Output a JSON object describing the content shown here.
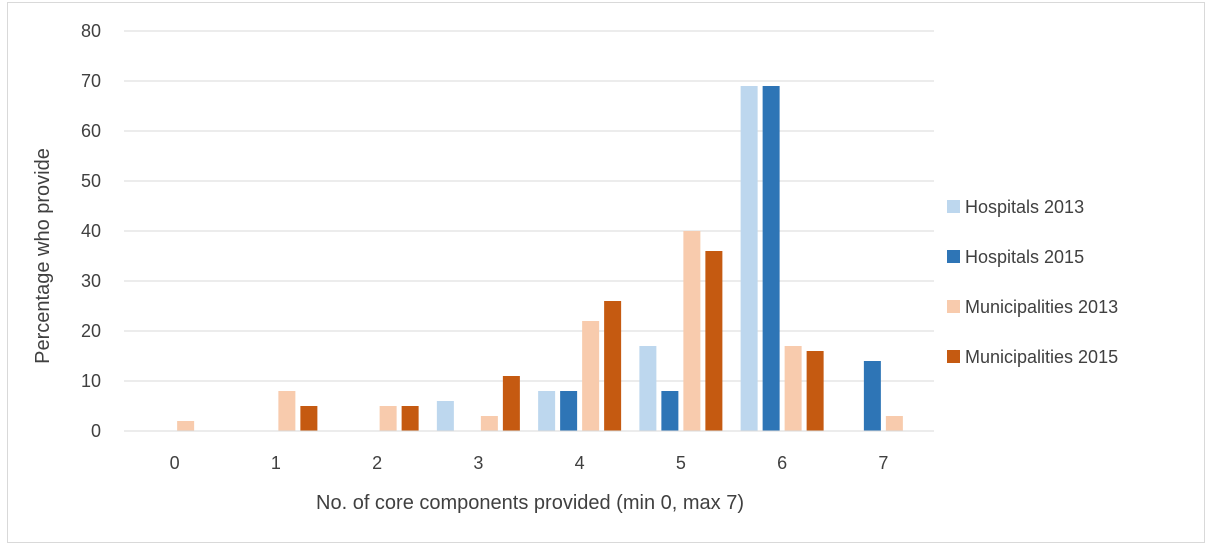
{
  "chart_data": {
    "type": "bar",
    "title": "",
    "xlabel": "No. of core components provided (min 0, max 7)",
    "ylabel": "Percentage who provide",
    "ylim": [
      0,
      80
    ],
    "yticks": [
      "0",
      "10",
      "20",
      "30",
      "40",
      "50",
      "60",
      "70",
      "80"
    ],
    "grid": true,
    "legend_position": "right",
    "categories": [
      "0",
      "1",
      "2",
      "3",
      "4",
      "5",
      "6",
      "7"
    ],
    "series": [
      {
        "name": "Hospitals 2013",
        "color": "#bdd7ee",
        "values": [
          0,
          0,
          0,
          6,
          8,
          17,
          69,
          0
        ]
      },
      {
        "name": "Hospitals 2015",
        "color": "#2e75b6",
        "values": [
          0,
          0,
          0,
          0,
          8,
          8,
          69,
          14
        ]
      },
      {
        "name": "Municipalities 2013",
        "color": "#f8cbad",
        "values": [
          2,
          8,
          5,
          3,
          22,
          40,
          17,
          3
        ]
      },
      {
        "name": "Municipalities 2015",
        "color": "#c55a11",
        "values": [
          0,
          5,
          5,
          11,
          26,
          36,
          16,
          0
        ]
      }
    ]
  }
}
